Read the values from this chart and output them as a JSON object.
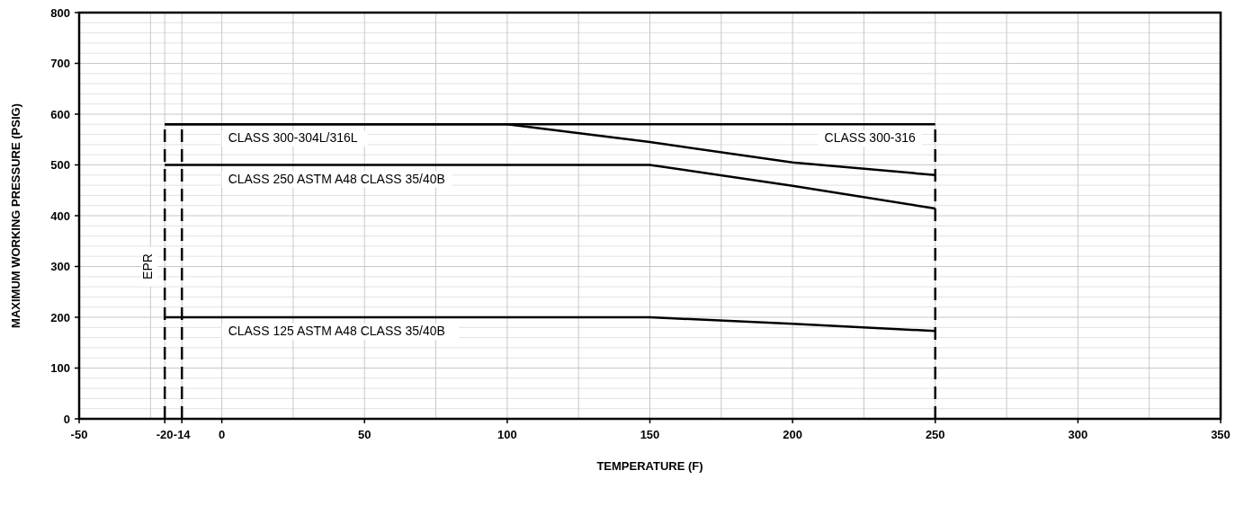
{
  "chart_data": {
    "type": "line",
    "xlabel": "TEMPERATURE (F)",
    "ylabel": "MAXIMUM WORKING PRESSURE (PSIG)",
    "xlim": [
      -50,
      350
    ],
    "ylim": [
      0,
      800
    ],
    "xticks": [
      -50,
      {
        "value": -25,
        "label": null
      },
      -20,
      -14,
      0,
      {
        "value": 25,
        "label": null
      },
      50,
      {
        "value": 75,
        "label": null
      },
      100,
      {
        "value": 125,
        "label": null
      },
      150,
      {
        "value": 175,
        "label": null
      },
      200,
      {
        "value": 225,
        "label": null
      },
      250,
      {
        "value": 275,
        "label": null
      },
      300,
      {
        "value": 325,
        "label": null
      },
      350
    ],
    "yticks": [
      0,
      {
        "value": 20,
        "label": null
      },
      {
        "value": 40,
        "label": null
      },
      {
        "value": 60,
        "label": null
      },
      {
        "value": 80,
        "label": null
      },
      100,
      {
        "value": 120,
        "label": null
      },
      {
        "value": 140,
        "label": null
      },
      {
        "value": 160,
        "label": null
      },
      {
        "value": 180,
        "label": null
      },
      200,
      {
        "value": 220,
        "label": null
      },
      {
        "value": 240,
        "label": null
      },
      {
        "value": 260,
        "label": null
      },
      {
        "value": 280,
        "label": null
      },
      300,
      {
        "value": 320,
        "label": null
      },
      {
        "value": 340,
        "label": null
      },
      {
        "value": 360,
        "label": null
      },
      {
        "value": 380,
        "label": null
      },
      400,
      {
        "value": 420,
        "label": null
      },
      {
        "value": 440,
        "label": null
      },
      {
        "value": 460,
        "label": null
      },
      {
        "value": 480,
        "label": null
      },
      500,
      {
        "value": 520,
        "label": null
      },
      {
        "value": 540,
        "label": null
      },
      {
        "value": 560,
        "label": null
      },
      {
        "value": 580,
        "label": null
      },
      600,
      {
        "value": 620,
        "label": null
      },
      {
        "value": 640,
        "label": null
      },
      {
        "value": 660,
        "label": null
      },
      {
        "value": 680,
        "label": null
      },
      700,
      {
        "value": 720,
        "label": null
      },
      {
        "value": 740,
        "label": null
      },
      {
        "value": 760,
        "label": null
      },
      {
        "value": 780,
        "label": null
      },
      800
    ],
    "grid": true,
    "marker": "none",
    "series": [
      {
        "name": "CLASS 300-316",
        "color": "#000000",
        "x": [
          -20,
          250
        ],
        "values": [
          580,
          580
        ]
      },
      {
        "name": "CLASS 300-304L/316L",
        "color": "#000000",
        "x": [
          -20,
          100,
          150,
          200,
          250
        ],
        "values": [
          580,
          580,
          545,
          505,
          480
        ]
      },
      {
        "name": "CLASS 250 ASTM A48 CLASS 35/40B",
        "color": "#000000",
        "x": [
          -20,
          150,
          200,
          250
        ],
        "values": [
          500,
          500,
          459,
          414
        ]
      },
      {
        "name": "CLASS 125  ASTM A48 CLASS 35/40B",
        "color": "#000000",
        "x": [
          -20,
          150,
          200,
          250
        ],
        "values": [
          200,
          200,
          187,
          173
        ]
      },
      {
        "color": "#000000",
        "line_style": "dashed",
        "x": [
          -20,
          -20
        ],
        "values": [
          0,
          580
        ]
      },
      {
        "color": "#000000",
        "line_style": "dashed",
        "x": [
          -14,
          -14
        ],
        "values": [
          0,
          580
        ]
      },
      {
        "color": "#000000",
        "line_style": "dashed",
        "x": [
          250,
          250
        ],
        "values": [
          0,
          580
        ]
      }
    ],
    "annotations": [
      {
        "text": "EPR",
        "x": -20,
        "y": 300
      }
    ]
  }
}
